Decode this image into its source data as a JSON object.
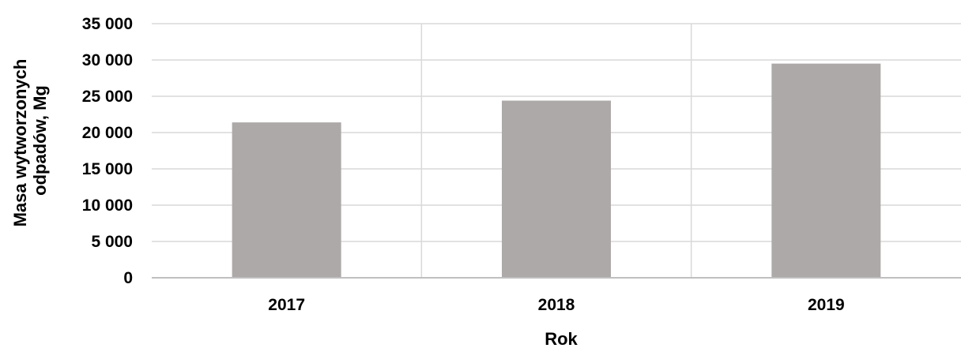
{
  "chart_data": {
    "type": "bar",
    "title": "",
    "xlabel": "Rok",
    "ylabel_lines": [
      "Masa wytworzonych",
      "odpadów, Mg"
    ],
    "categories": [
      "2017",
      "2018",
      "2019"
    ],
    "values": [
      21400,
      24400,
      29500
    ],
    "ylim": [
      0,
      35000
    ],
    "yticks": [
      0,
      5000,
      10000,
      15000,
      20000,
      25000,
      30000,
      35000
    ],
    "ytick_labels": [
      "0",
      "5 000",
      "10 000",
      "15 000",
      "20 000",
      "25 000",
      "30 000",
      "35 000"
    ],
    "grid": true,
    "legend": "none",
    "bar_color": "#ada9a8",
    "grid_color": "#d9d9d9",
    "axis_color": "#bfbfbf"
  }
}
